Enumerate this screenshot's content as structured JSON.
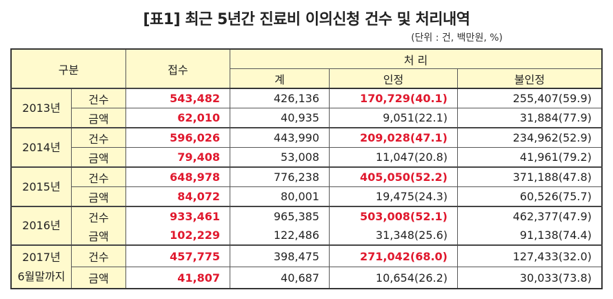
{
  "title": "[표1] 최근 5년간 진료비 이의신청 건수 및 처리내역",
  "unit": "(단위 : 건, 백만원, %)",
  "header": {
    "category": "구분",
    "received": "접수",
    "processed": "처 리",
    "total": "계",
    "accepted": "인정",
    "rejected": "불인정"
  },
  "colors": {
    "header_bg": "#fffacd",
    "highlight": "#e0182d"
  },
  "rows": [
    {
      "year": "2013년",
      "count": {
        "type": "건수",
        "received": "543,482",
        "total": "426,136",
        "accepted": "170,729(40.1)",
        "rejected": "255,407(59.9)"
      },
      "amount": {
        "type": "금액",
        "received": "62,010",
        "total": "40,935",
        "accepted": "9,051(22.1)",
        "rejected": "31,884(77.9)"
      }
    },
    {
      "year": "2014년",
      "count": {
        "type": "건수",
        "received": "596,026",
        "total": "443,990",
        "accepted": "209,028(47.1)",
        "rejected": "234,962(52.9)"
      },
      "amount": {
        "type": "금액",
        "received": "79,408",
        "total": "53,008",
        "accepted": "11,047(20.8)",
        "rejected": "41,961(79.2)"
      }
    },
    {
      "year": "2015년",
      "count": {
        "type": "건수",
        "received": "648,978",
        "total": "776,238",
        "accepted": "405,050(52.2)",
        "rejected": "371,188(47.8)"
      },
      "amount": {
        "type": "금액",
        "received": "84,072",
        "total": "80,001",
        "accepted": "19,475(24.3)",
        "rejected": "60,526(75.7)"
      }
    },
    {
      "year": "2016년",
      "count": {
        "type": "건수",
        "received": "933,461",
        "total": "965,385",
        "accepted": "503,008(52.1)",
        "rejected": "462,377(47.9)"
      },
      "amount": {
        "type": "금액",
        "received": "102,229",
        "total": "122,486",
        "accepted": "31,348(25.6)",
        "rejected": "91,138(74.4)"
      }
    },
    {
      "year": "2017년\n6월말까지",
      "count": {
        "type": "건수",
        "received": "457,775",
        "total": "398,475",
        "accepted": "271,042(68.0)",
        "rejected": "127,433(32.0)"
      },
      "amount": {
        "type": "금액",
        "received": "41,807",
        "total": "40,687",
        "accepted": "10,654(26.2)",
        "rejected": "30,033(73.8)"
      }
    }
  ]
}
